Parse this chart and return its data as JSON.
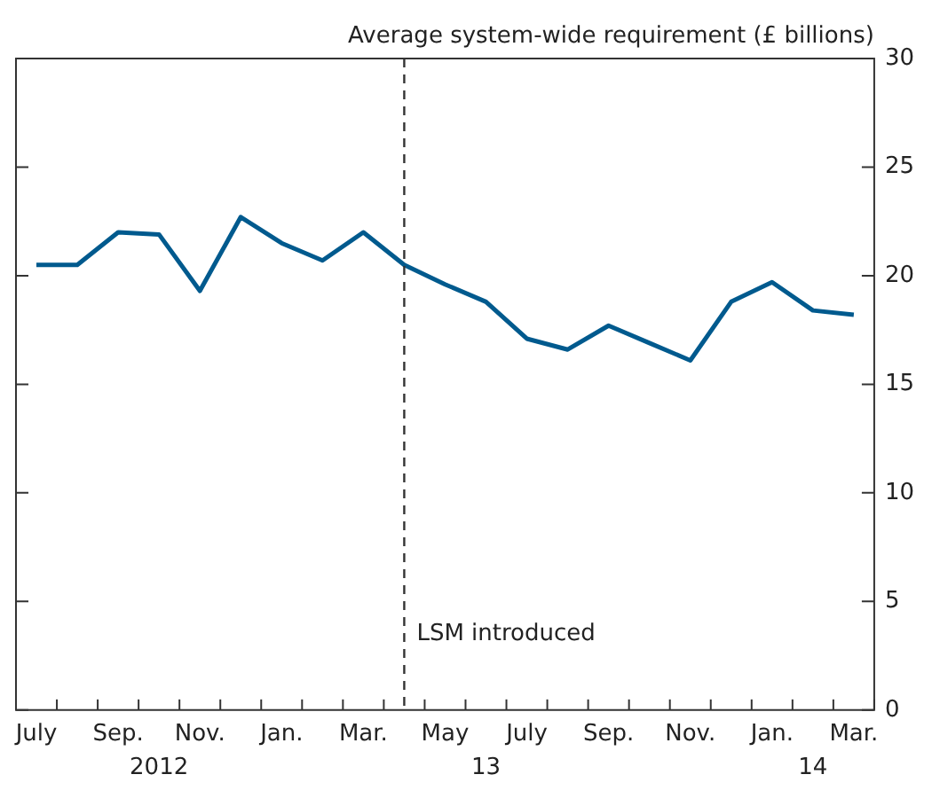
{
  "chart_data": {
    "type": "line",
    "ylabel": "Average system-wide requirement (£ billions)",
    "categories": [
      "July",
      null,
      "Sep.",
      null,
      "Nov.",
      null,
      "Jan.",
      null,
      "Mar.",
      null,
      "May",
      null,
      "July",
      null,
      "Sep.",
      null,
      "Nov.",
      null,
      "Jan.",
      null,
      "Mar."
    ],
    "series": [
      {
        "color": "#005a8e",
        "values": [
          20.5,
          20.5,
          22.0,
          21.9,
          19.3,
          22.7,
          21.5,
          20.7,
          22.0,
          20.5,
          19.6,
          18.8,
          17.1,
          16.6,
          17.7,
          16.9,
          16.1,
          18.8,
          19.7,
          18.4,
          18.2
        ]
      }
    ],
    "ylim": [
      0,
      30
    ],
    "yticks": [
      0,
      5,
      10,
      15,
      20,
      25,
      30
    ],
    "annotations": [
      "LSM introduced",
      "2012",
      "13",
      "14"
    ],
    "marker": "none",
    "line_style": "solid",
    "legend": false
  }
}
